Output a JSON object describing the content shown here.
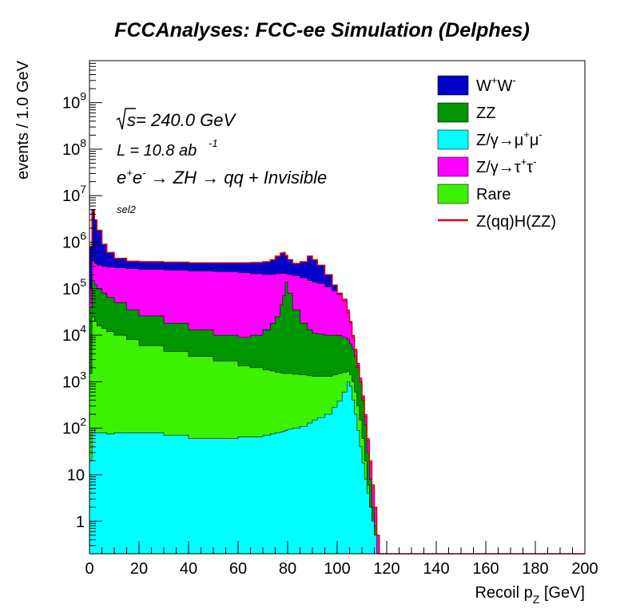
{
  "title": "FCCAnalyses: FCC-ee Simulation (Delphes)",
  "annotations": {
    "sqrt_s_prefix": "s",
    "sqrt_s_value": " = 240.0 GeV",
    "lumi_prefix": "L = 10.8 ab",
    "lumi_exp": "-1",
    "process_e1": "e",
    "process_e1_sup": "+",
    "process_e2": "e",
    "process_e2_sup": "-",
    "process_rest": " → ZH → qq + Invisible",
    "selection": "sel2"
  },
  "colors": {
    "WW": "#0000c8",
    "ZZ": "#009600",
    "Zmumu": "#00ffff",
    "Ztautau": "#ff00ff",
    "Rare": "#3cf200",
    "signal": "#dc0000"
  },
  "chart_data": {
    "type": "area",
    "stacked": true,
    "ylog": true,
    "xlim": [
      0,
      200
    ],
    "ylim": [
      0.2,
      8000000000
    ],
    "xlabel_main": "Recoil p",
    "xlabel_sub": "Z",
    "xlabel_unit": " [GeV]",
    "ylabel": "events / 1.0 GeV",
    "xticks": [
      "0",
      "20",
      "40",
      "60",
      "80",
      "100",
      "120",
      "140",
      "160",
      "180",
      "200"
    ],
    "yticks": [
      {
        "value": 1,
        "label": "1",
        "exp": ""
      },
      {
        "value": 10,
        "label": "10",
        "exp": ""
      },
      {
        "value": 100,
        "label": "10",
        "exp": "2"
      },
      {
        "value": 1000,
        "label": "10",
        "exp": "3"
      },
      {
        "value": 10000,
        "label": "10",
        "exp": "4"
      },
      {
        "value": 100000,
        "label": "10",
        "exp": "5"
      },
      {
        "value": 1000000,
        "label": "10",
        "exp": "6"
      },
      {
        "value": 10000000,
        "label": "10",
        "exp": "7"
      },
      {
        "value": 100000000,
        "label": "10",
        "exp": "8"
      },
      {
        "value": 1000000000,
        "label": "10",
        "exp": "9"
      }
    ],
    "x": [
      0,
      1,
      2,
      3,
      5,
      7,
      10,
      15,
      20,
      30,
      40,
      50,
      60,
      65,
      70,
      73,
      75,
      77,
      78,
      79,
      80,
      82,
      85,
      88,
      90,
      92,
      95,
      98,
      100,
      102,
      104,
      105,
      106,
      107,
      108,
      109,
      110,
      111,
      112,
      113,
      114,
      115,
      116,
      117,
      118,
      119,
      120,
      200
    ],
    "stack_totals": {
      "Zmumu": [
        20,
        100,
        80,
        80,
        80,
        75,
        80,
        80,
        80,
        70,
        60,
        60,
        65,
        65,
        70,
        75,
        80,
        82,
        85,
        90,
        95,
        100,
        110,
        130,
        150,
        170,
        200,
        280,
        380,
        600,
        1000,
        800,
        400,
        200,
        90,
        40,
        18,
        8,
        4,
        2,
        1,
        0.5,
        0.2,
        0.2,
        0.2,
        0.2,
        0.2,
        0.2
      ],
      "Rare": [
        1500,
        25000,
        20000,
        16000,
        14000,
        12000,
        10000,
        8000,
        6000,
        4500,
        3500,
        2800,
        2200,
        2000,
        1800,
        1700,
        1600,
        1550,
        1500,
        1500,
        1500,
        1450,
        1400,
        1350,
        1300,
        1300,
        1300,
        1400,
        1500,
        1600,
        1700,
        1400,
        1000,
        600,
        300,
        150,
        60,
        20,
        6,
        2,
        1,
        0.5,
        0.2,
        0.2,
        0.2,
        0.2,
        0.2,
        0.2
      ],
      "ZZ": [
        8000,
        70000,
        60000,
        50000,
        40000,
        35000,
        28000,
        22000,
        17000,
        12000,
        8000,
        5500,
        3500,
        3000,
        2800,
        2600,
        2500,
        2500,
        2500,
        2400,
        2300,
        2100,
        1900,
        1700,
        1600,
        1600,
        1700,
        2000,
        2500,
        3000,
        3500,
        3000,
        2200,
        1500,
        800,
        400,
        120,
        40,
        10,
        3,
        1,
        0.5,
        0.2,
        0.2,
        0.2,
        0.2,
        0.2,
        0.2
      ],
      "ZZ_top": [
        40000,
        150000,
        120000,
        100000,
        80000,
        65000,
        50000,
        35000,
        26000,
        18000,
        13000,
        10000,
        9000,
        10000,
        13000,
        18000,
        25000,
        45000,
        70000,
        140000,
        80000,
        35000,
        18000,
        13000,
        11000,
        10500,
        10000,
        10000,
        9800,
        9000,
        8000,
        6500,
        5000,
        3500,
        2000,
        1000,
        400,
        120,
        30,
        8,
        2,
        0.8,
        0.2,
        0.2,
        0.2,
        0.2,
        0.2,
        0.2
      ],
      "Ztautau": [
        100000,
        400000,
        350000,
        320000,
        300000,
        290000,
        280000,
        270000,
        260000,
        250000,
        240000,
        230000,
        220000,
        210000,
        200000,
        200000,
        210000,
        215000,
        215000,
        210000,
        200000,
        190000,
        170000,
        150000,
        140000,
        130000,
        110000,
        90000,
        75000,
        60000,
        35000,
        20000,
        10000,
        5000,
        2500,
        1200,
        500,
        200,
        60,
        20,
        6,
        2,
        0.5,
        0.2,
        0.2,
        0.2,
        0.2,
        0.2
      ],
      "WW": [
        800000,
        5000000,
        3000000,
        1800000,
        900000,
        600000,
        450000,
        390000,
        380000,
        370000,
        360000,
        360000,
        360000,
        365000,
        380000,
        420000,
        500000,
        580000,
        600000,
        520000,
        420000,
        350000,
        380000,
        500000,
        420000,
        320000,
        200000,
        120000,
        80000,
        55000,
        30000,
        18000,
        9000,
        4500,
        2200,
        1000,
        450,
        180,
        55,
        18,
        6,
        2,
        0.5,
        0.2,
        0.2,
        0.2,
        0.2,
        0.2
      ],
      "signal": [
        800000,
        5000000,
        3000000,
        1800000,
        900000,
        600000,
        450000,
        390000,
        380000,
        370000,
        360000,
        360000,
        360000,
        365000,
        380000,
        420000,
        500000,
        580000,
        600000,
        520000,
        420000,
        350000,
        380000,
        500000,
        420000,
        320000,
        200000,
        120000,
        80000,
        55000,
        30000,
        18000,
        9000,
        4500,
        2200,
        1000,
        450,
        180,
        55,
        18,
        6,
        2,
        0.5,
        0.2,
        0.2,
        0.2,
        0.2,
        0.2
      ]
    },
    "legend": [
      {
        "key": "WW",
        "label": "W",
        "sup1": "+",
        "mid": "W",
        "sup2": "-",
        "kind": "box"
      },
      {
        "key": "ZZ",
        "label": "ZZ",
        "sup1": "",
        "mid": "",
        "sup2": "",
        "kind": "box"
      },
      {
        "key": "Zmumu",
        "label": "Z/γ→μ",
        "sup1": "+",
        "mid": "μ",
        "sup2": "-",
        "kind": "box"
      },
      {
        "key": "Ztautau",
        "label": "Z/γ→τ",
        "sup1": "+",
        "mid": "τ",
        "sup2": "-",
        "kind": "box"
      },
      {
        "key": "Rare",
        "label": "Rare",
        "sup1": "",
        "mid": "",
        "sup2": "",
        "kind": "box"
      },
      {
        "key": "signal",
        "label": "Z(qq)H(ZZ)",
        "sup1": "",
        "mid": "",
        "sup2": "",
        "kind": "line"
      }
    ],
    "legend_position": "top-right"
  }
}
